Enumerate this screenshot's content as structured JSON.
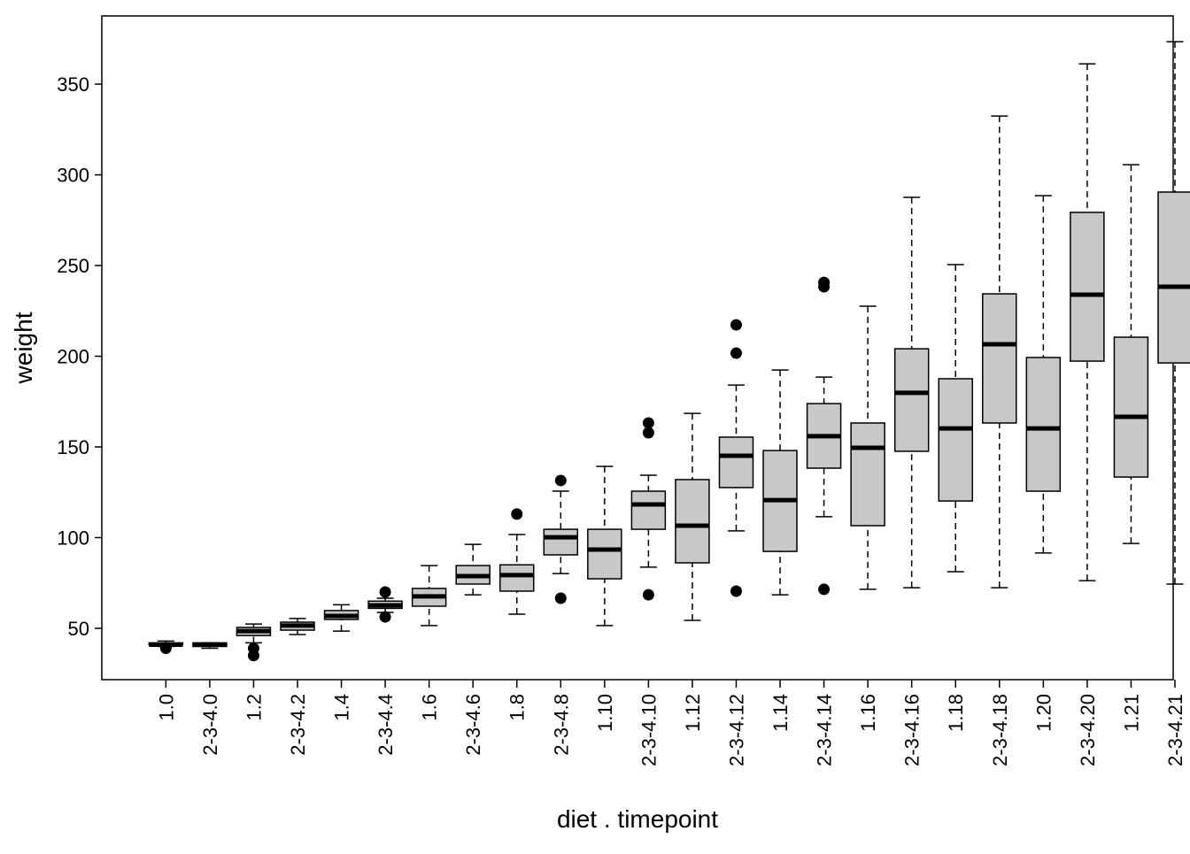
{
  "chart_data": {
    "type": "box",
    "x_label": "diet . timepoint",
    "y_label": "weight",
    "categories": [
      "1.0",
      "2-3-4.0",
      "1.2",
      "2-3-4.2",
      "1.4",
      "2-3-4.4",
      "1.6",
      "2-3-4.6",
      "1.8",
      "2-3-4.8",
      "1.10",
      "2-3-4.10",
      "1.12",
      "2-3-4.12",
      "1.14",
      "2-3-4.14",
      "1.16",
      "2-3-4.16",
      "1.18",
      "2-3-4.18",
      "1.20",
      "2-3-4.20",
      "1.21",
      "2-3-4.21"
    ],
    "whisker_low": [
      40,
      39,
      42,
      46.6,
      48.5,
      58.8,
      51.5,
      68.5,
      57.8,
      80.2,
      51.5,
      83.7,
      54.4,
      103.7,
      68.5,
      111.5,
      71.5,
      72.4,
      81.2,
      72.4,
      91.5,
      76.3,
      96.8,
      74.4
    ],
    "q1": [
      41,
      40,
      46,
      49,
      54.9,
      61,
      62.2,
      74.4,
      70.5,
      90.5,
      77.3,
      104.6,
      86.1,
      127.6,
      92.4,
      138.3,
      106.6,
      147.6,
      120.2,
      163.2,
      125.6,
      197.3,
      133.4,
      196.3
    ],
    "median": [
      41,
      41,
      48.5,
      51.5,
      56.8,
      62.7,
      67.6,
      78.8,
      79.3,
      100.2,
      93.4,
      118.3,
      106.6,
      145.1,
      120.7,
      155.9,
      149.5,
      179.8,
      160.2,
      206.6,
      160.2,
      233.9,
      166.6,
      238.3
    ],
    "q3": [
      42,
      42,
      50.5,
      53.4,
      59.8,
      65,
      72,
      84.6,
      85,
      104.6,
      104.6,
      125.6,
      132,
      155.4,
      148,
      173.9,
      163.2,
      204.1,
      187.6,
      234.4,
      199.3,
      279.3,
      210.5,
      290.5
    ],
    "whisker_high": [
      43,
      42,
      52.4,
      55.4,
      63,
      66.6,
      84.6,
      96.3,
      101.7,
      125.6,
      139.3,
      134.4,
      168.5,
      184.1,
      192.4,
      188.5,
      227.6,
      287.6,
      250.5,
      332.4,
      288.5,
      361.2,
      305.6,
      373.4
    ],
    "outliers": [
      [
        39
      ],
      [],
      [
        39,
        35
      ],
      [],
      [],
      [
        70,
        56.3
      ],
      [],
      [],
      [
        113
      ],
      [
        131.5,
        66.6
      ],
      [],
      [
        163.2,
        157.8,
        68.5
      ],
      [],
      [
        217.3,
        201.7,
        70.5
      ],
      [],
      [
        240.7,
        238.3,
        71.5
      ],
      [],
      [],
      [],
      [],
      [],
      [],
      [],
      []
    ],
    "color": "#c8c8c8",
    "ylim": [
      21.7,
      387.6
    ],
    "yticks": [
      50,
      100,
      150,
      200,
      250,
      300,
      350
    ]
  }
}
